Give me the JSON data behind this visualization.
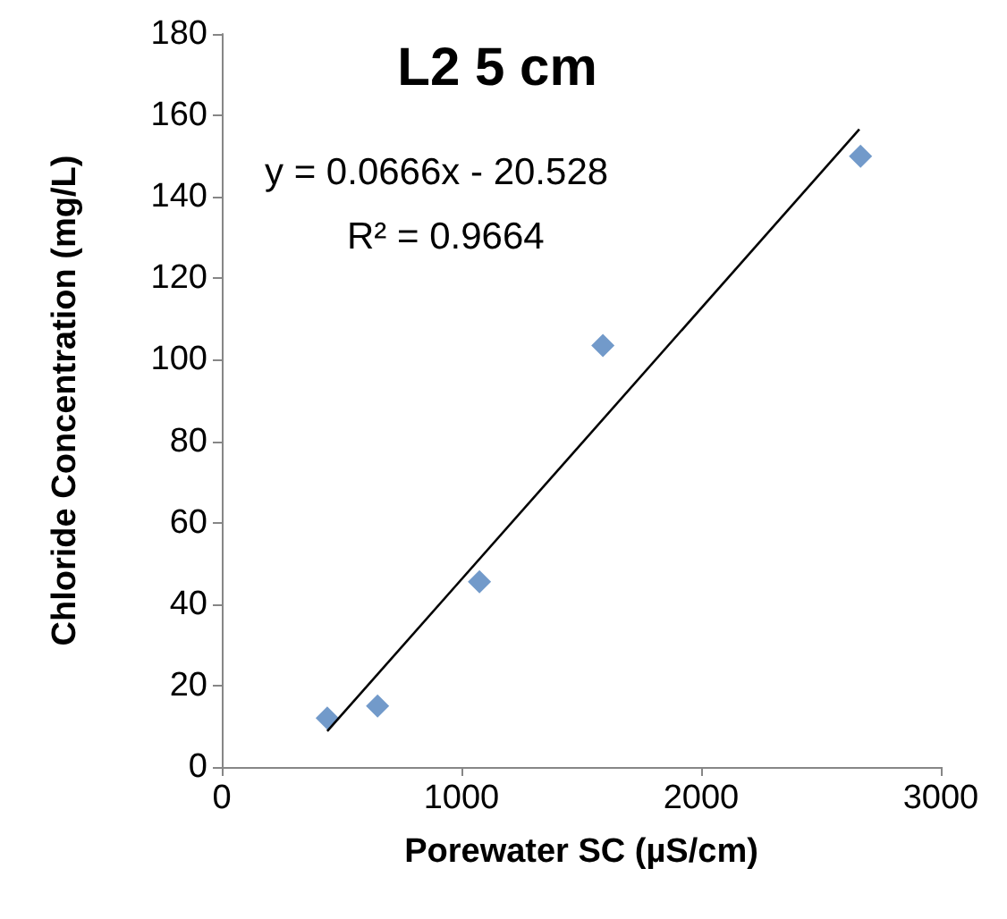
{
  "chart_data": {
    "type": "scatter",
    "title": "L2 5 cm",
    "xlabel": "Porewater SC (µS/cm)",
    "ylabel": "Chloride Concentration (mg/L)",
    "annotations": [
      "y = 0.0666x - 20.528",
      "R² = 0.9664"
    ],
    "series": [
      {
        "color": "#4f81bd",
        "x": [
          440,
          650,
          1075,
          1590,
          2665
        ],
        "values": [
          12,
          15,
          45.5,
          103.5,
          150
        ],
        "marker": "diamond"
      },
      {
        "type": "line",
        "color": "#000000",
        "x": [
          440,
          2660
        ],
        "values": [
          8.8,
          156.6
        ],
        "marker": "none",
        "line_style": "solid"
      }
    ],
    "xlim": [
      0,
      3000
    ],
    "xticks": [
      0,
      1000,
      2000,
      3000
    ],
    "ylim": [
      0,
      180
    ],
    "yticks": [
      0,
      20,
      40,
      60,
      80,
      100,
      120,
      140,
      160,
      180
    ],
    "grid": false
  }
}
